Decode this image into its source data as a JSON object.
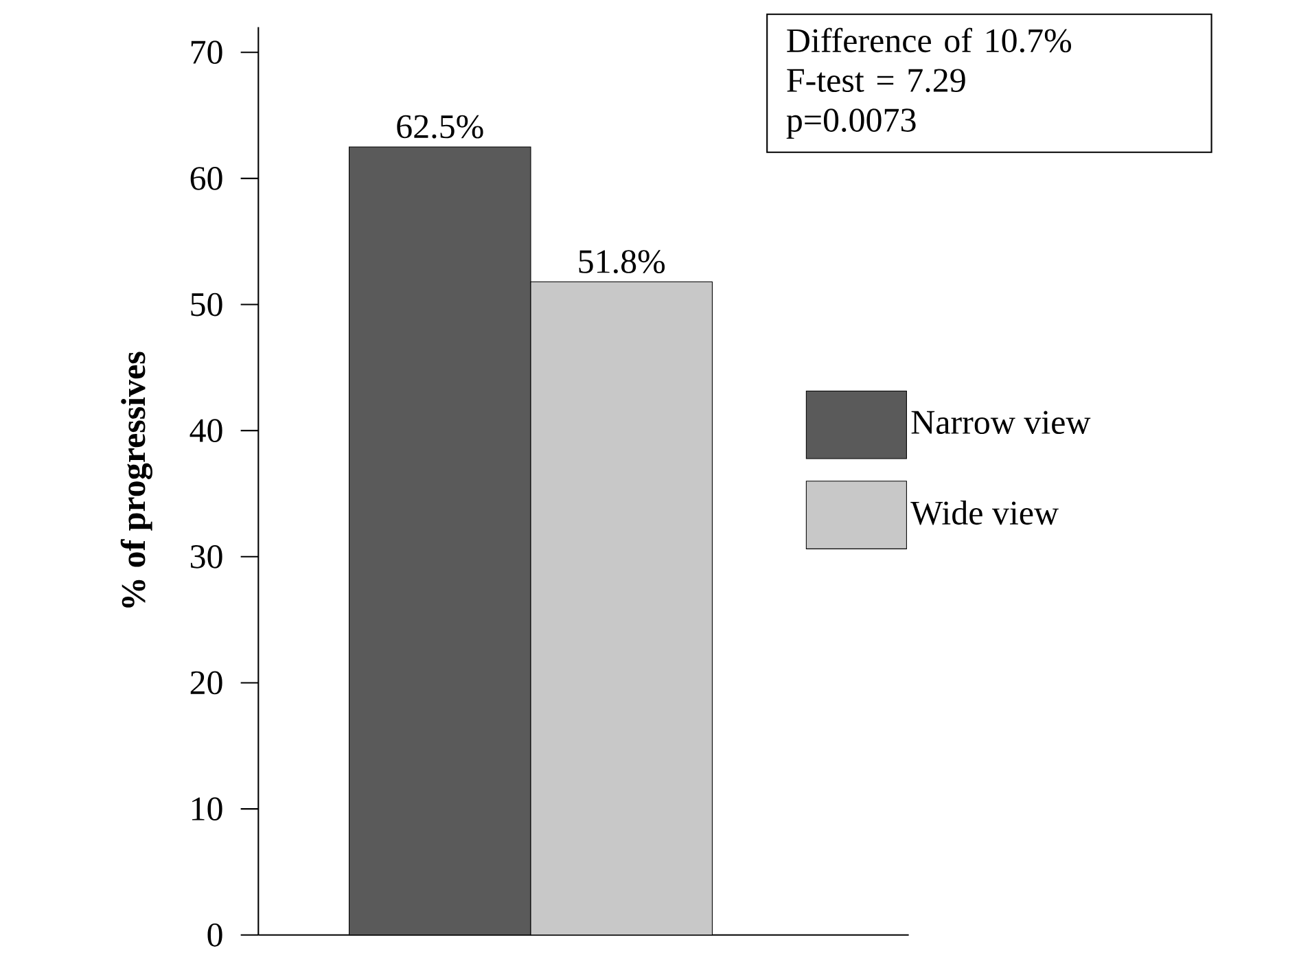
{
  "chart_data": {
    "type": "bar",
    "ylabel": "% of progressives",
    "categories": [
      null
    ],
    "series": [
      {
        "name": "Narrow view",
        "color": "#5a5a5a",
        "values": [
          62.5
        ],
        "value_labels": [
          "62.5%"
        ]
      },
      {
        "name": "Wide view",
        "color": "#c8c8c8",
        "values": [
          51.8
        ],
        "value_labels": [
          "51.8%"
        ]
      }
    ],
    "ylim": [
      0,
      72
    ],
    "yticks": [
      0,
      10,
      20,
      30,
      40,
      50,
      60,
      70
    ],
    "legend": "right",
    "annotations": [
      "Difference of 10.7%",
      "F-test = 7.29",
      "p=0.0073"
    ]
  }
}
